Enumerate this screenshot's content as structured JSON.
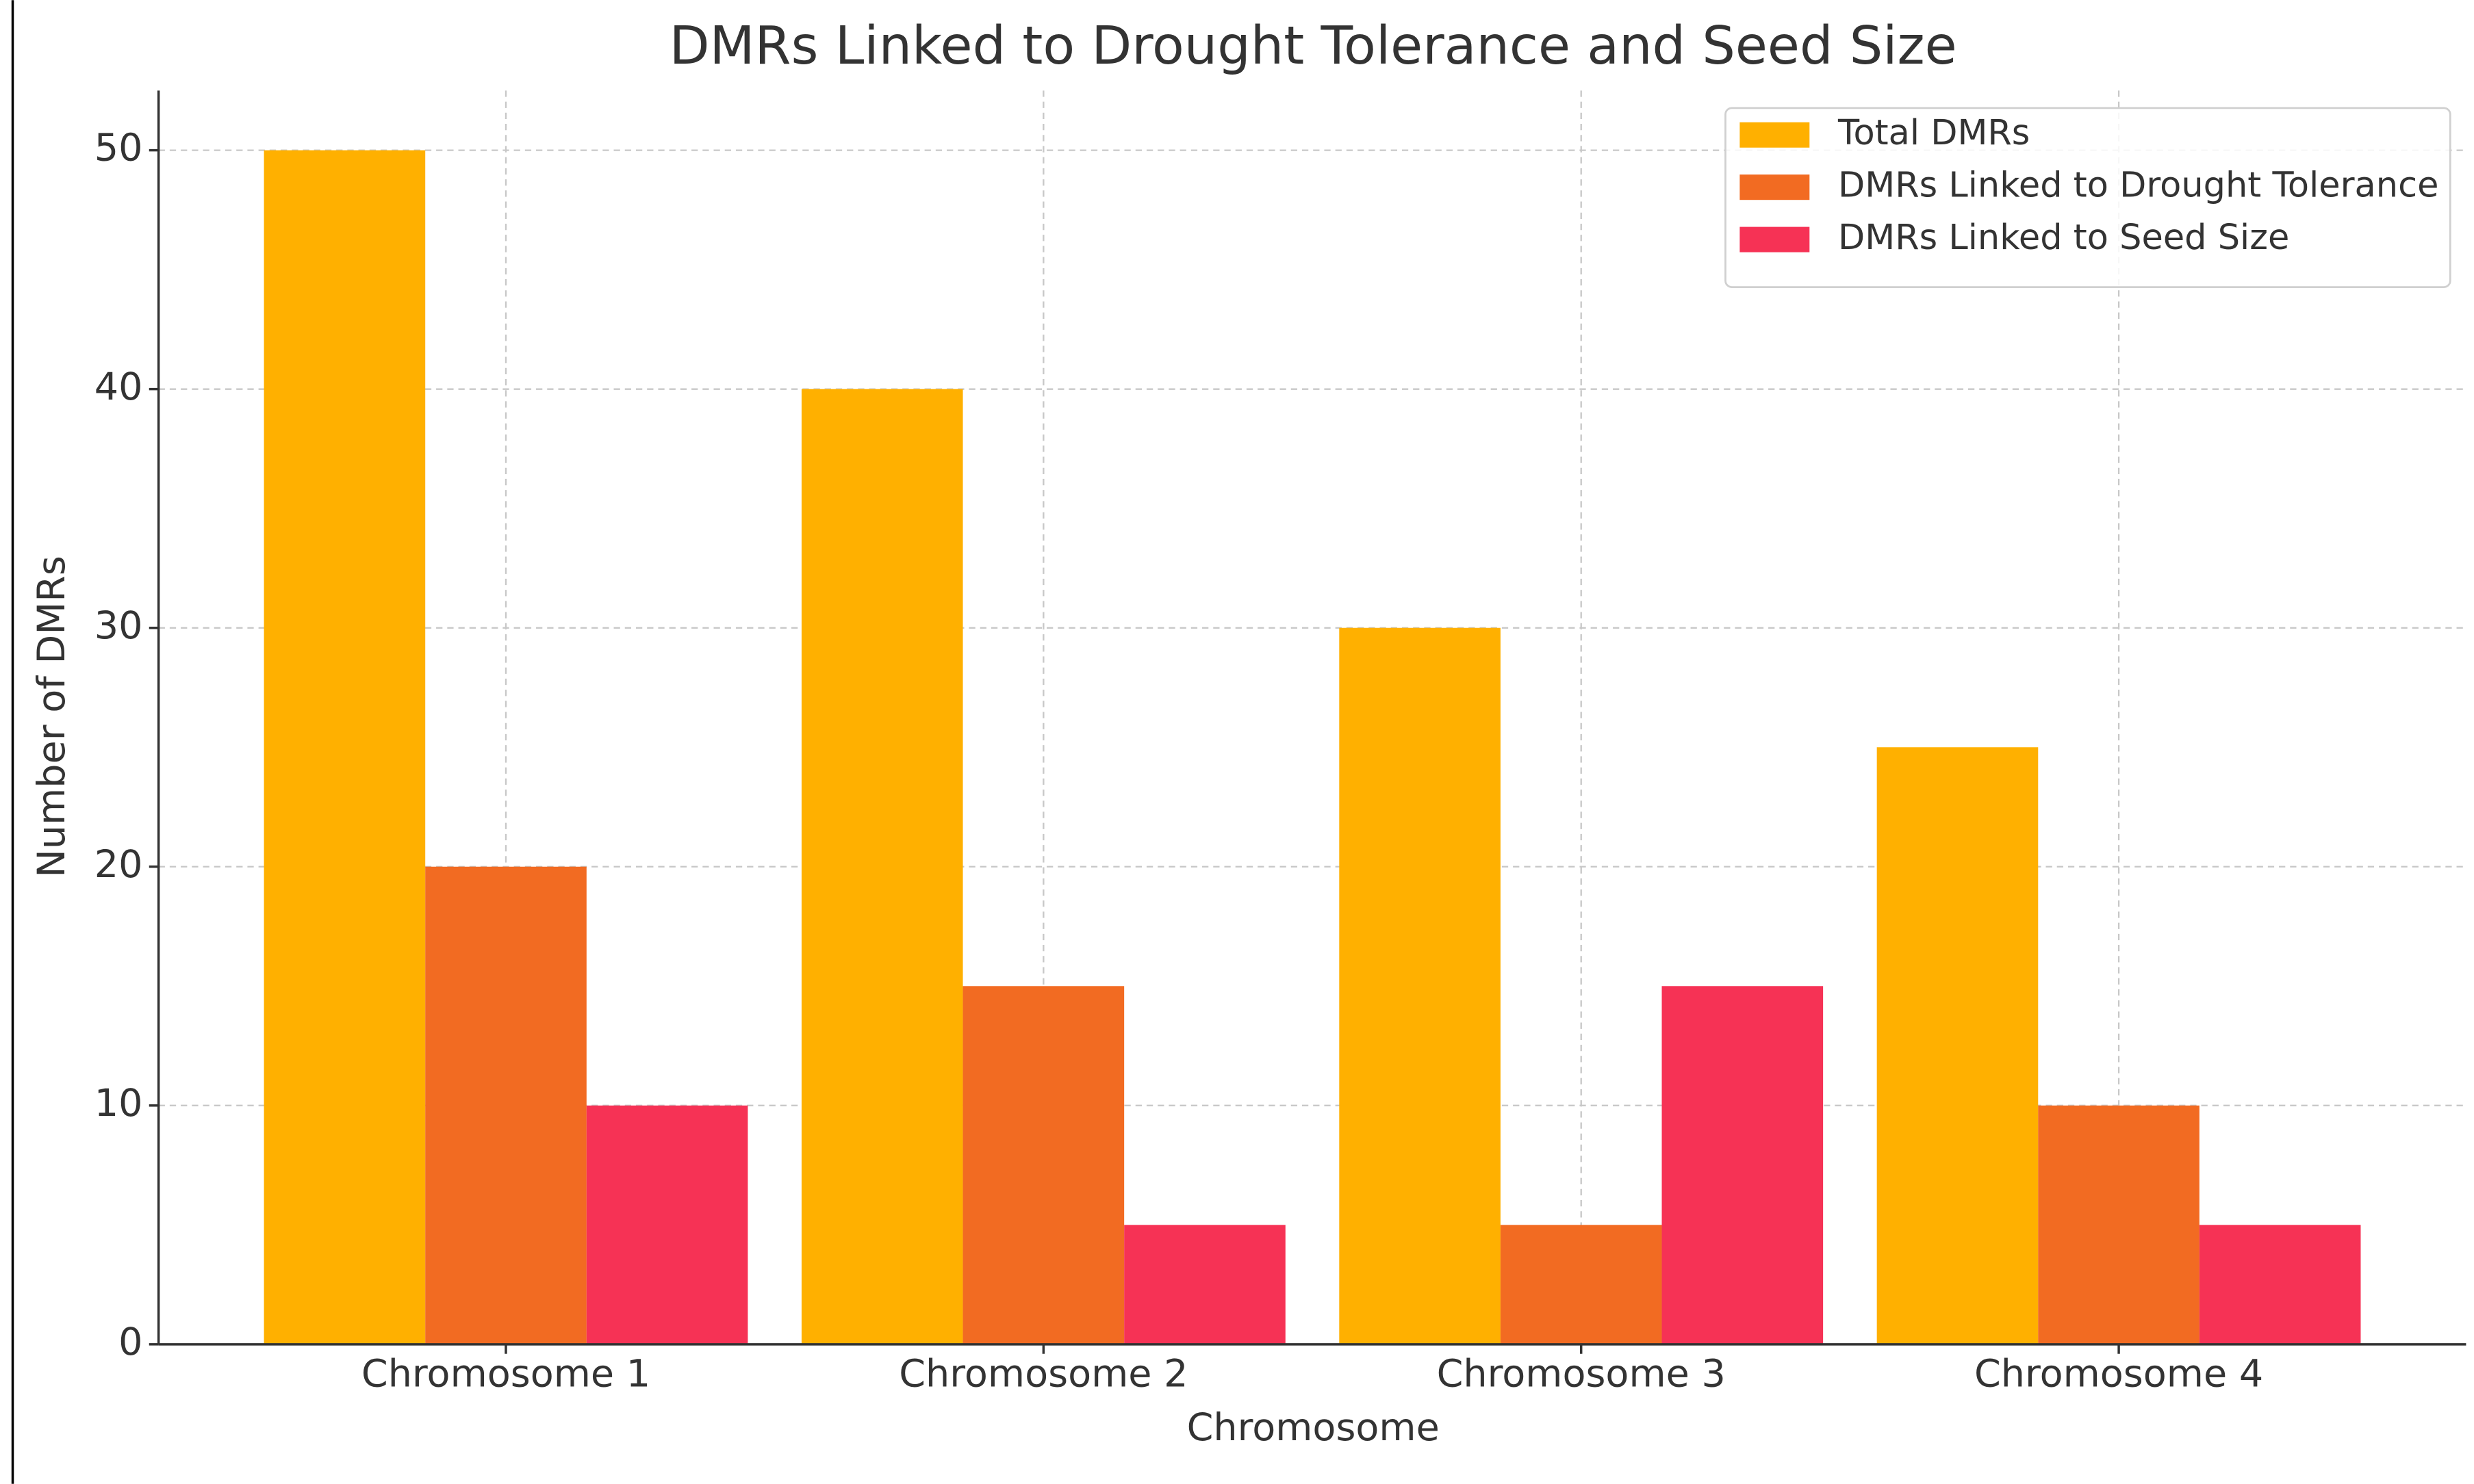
{
  "chart_data": {
    "type": "bar",
    "title": "DMRs Linked to Drought Tolerance and Seed Size",
    "x_label": "Chromosome",
    "y_label": "Number of DMRs",
    "categories": [
      "Chromosome 1",
      "Chromosome 2",
      "Chromosome 3",
      "Chromosome 4"
    ],
    "series": [
      {
        "name": "Total DMRs",
        "color": "#ffb000",
        "values": [
          50,
          40,
          30,
          25
        ]
      },
      {
        "name": "DMRs Linked to Drought Tolerance",
        "color": "#f26b22",
        "values": [
          20,
          15,
          5,
          10
        ]
      },
      {
        "name": "DMRs Linked to Seed Size",
        "color": "#f63255",
        "values": [
          10,
          5,
          15,
          5
        ]
      }
    ],
    "ylim": [
      0,
      52.5
    ],
    "yticks": [
      0,
      10,
      20,
      30,
      40,
      50
    ],
    "grid": true,
    "legend": "upper right"
  }
}
